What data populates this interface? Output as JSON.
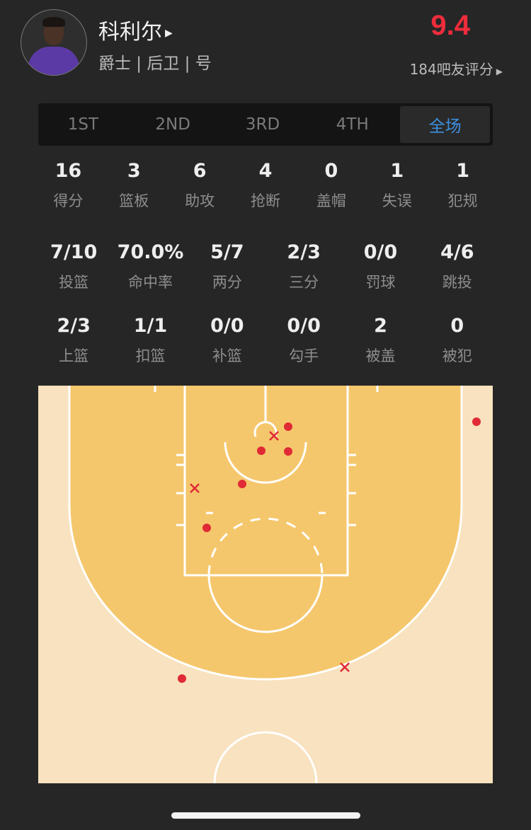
{
  "player": {
    "name": "科利尔",
    "subtitle": "爵士 | 后卫 | 号",
    "rating": "9.4",
    "raters": "184吧友评分"
  },
  "tabs": [
    {
      "label": "1ST"
    },
    {
      "label": "2ND"
    },
    {
      "label": "3RD"
    },
    {
      "label": "4TH"
    },
    {
      "label": "全场",
      "active": true
    }
  ],
  "basic_stats": [
    {
      "value": "16",
      "label": "得分"
    },
    {
      "value": "3",
      "label": "篮板"
    },
    {
      "value": "6",
      "label": "助攻"
    },
    {
      "value": "4",
      "label": "抢断"
    },
    {
      "value": "0",
      "label": "盖帽"
    },
    {
      "value": "1",
      "label": "失误"
    },
    {
      "value": "1",
      "label": "犯规"
    }
  ],
  "shooting_stats": [
    {
      "value": "7/10",
      "label": "投篮"
    },
    {
      "value": "70.0%",
      "label": "命中率"
    },
    {
      "value": "5/7",
      "label": "两分"
    },
    {
      "value": "2/3",
      "label": "三分"
    },
    {
      "value": "0/0",
      "label": "罚球"
    },
    {
      "value": "4/6",
      "label": "跳投"
    }
  ],
  "shot_type_stats": [
    {
      "value": "2/3",
      "label": "上篮"
    },
    {
      "value": "1/1",
      "label": "扣篮"
    },
    {
      "value": "0/0",
      "label": "补篮"
    },
    {
      "value": "0/0",
      "label": "勾手"
    },
    {
      "value": "2",
      "label": "被盖"
    },
    {
      "value": "0",
      "label": "被犯"
    }
  ],
  "shot_chart": {
    "colors": {
      "inside": "#f5c76c",
      "outside": "#f8e2bf",
      "lines": "#ffffff",
      "shot": "#e02a35"
    },
    "shots": [
      "made",
      "made",
      "made",
      "made",
      "made",
      "made",
      "made",
      "missed",
      "missed",
      "missed"
    ]
  }
}
